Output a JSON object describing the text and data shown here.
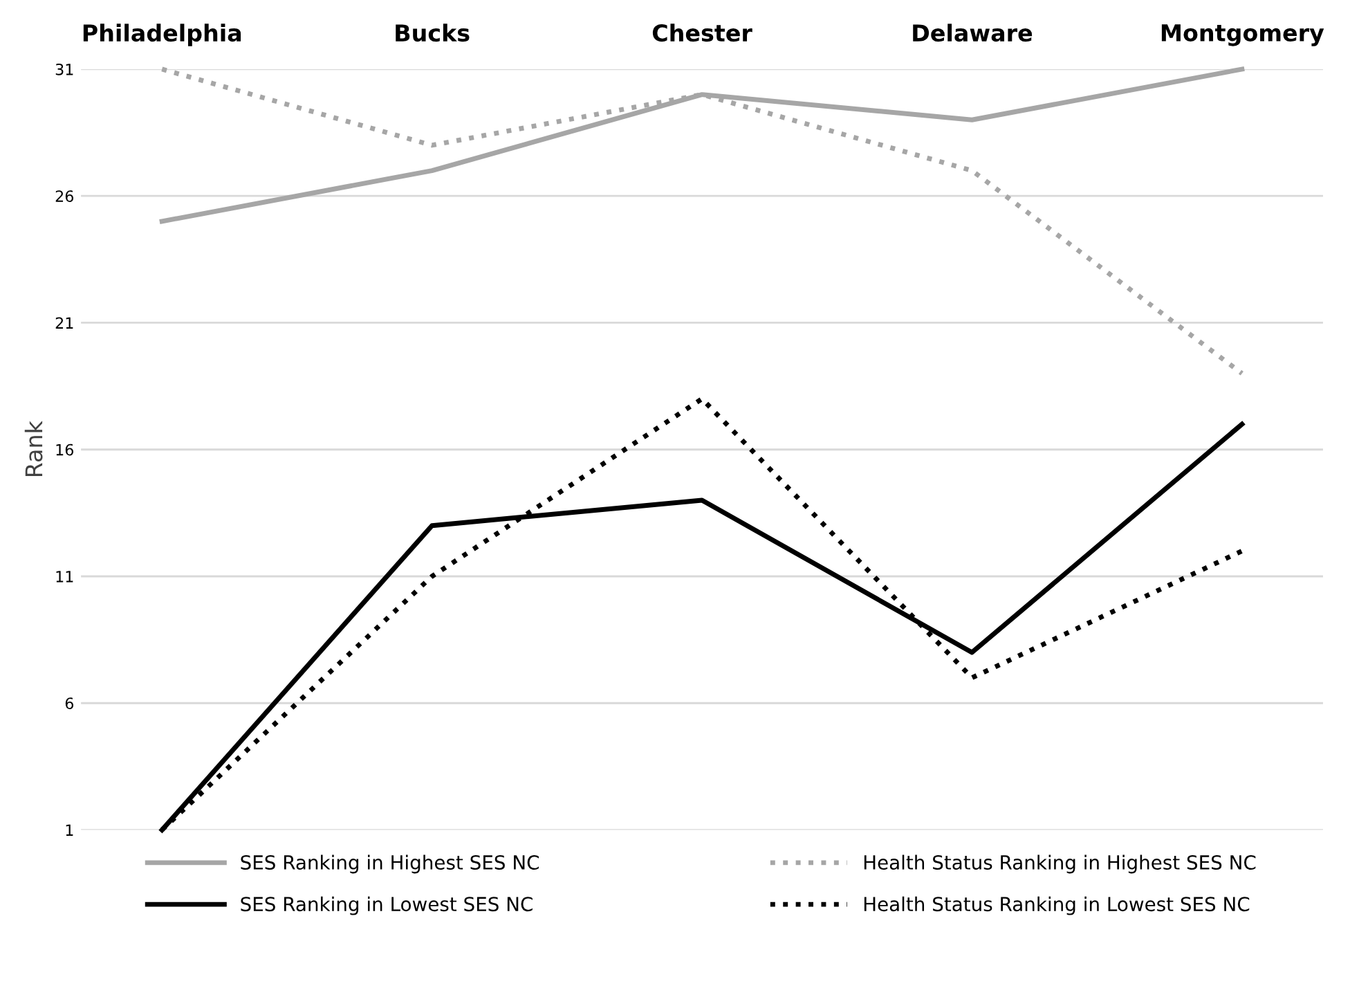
{
  "chart_data": {
    "type": "line",
    "ylabel": "Rank",
    "categories": [
      "Philadelphia",
      "Bucks",
      "Chester",
      "Delaware",
      "Montgomery"
    ],
    "series": [
      {
        "name": "SES Ranking in Highest SES NC",
        "color": "#a6a6a6",
        "line_style": "solid",
        "values": [
          25,
          27,
          30,
          29,
          31
        ]
      },
      {
        "name": "SES Ranking in Lowest SES NC",
        "color": "#000000",
        "line_style": "solid",
        "values": [
          1,
          13,
          14,
          8,
          17
        ]
      },
      {
        "name": "Health Status Ranking in Highest SES NC",
        "color": "#a6a6a6",
        "line_style": "dotted",
        "values": [
          31,
          28,
          30,
          27,
          19
        ]
      },
      {
        "name": "Health Status Ranking in Lowest SES NC",
        "color": "#000000",
        "line_style": "dotted",
        "values": [
          1,
          11,
          18,
          7,
          12
        ]
      }
    ],
    "ylim": [
      1,
      31
    ],
    "yticks": [
      1,
      6,
      11,
      16,
      21,
      26,
      31
    ],
    "grid": "y",
    "legend": "bottom",
    "marker": "none"
  }
}
